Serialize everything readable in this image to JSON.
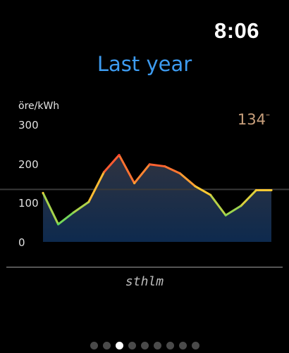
{
  "status": {
    "time": "8:06"
  },
  "screen": {
    "title": "Last year"
  },
  "current_price": {
    "value": "134",
    "marker": "–"
  },
  "region": {
    "name": "sthlm"
  },
  "pager": {
    "count": 9,
    "active_index": 2
  },
  "colors": {
    "title": "#3d9bf0",
    "current_price": "#c9a07c",
    "area_fill_top": "#2f3340",
    "area_fill_bottom": "#0e2a4e",
    "line_low": "#4cd964",
    "line_mid": "#ffcc33",
    "line_high": "#ff3b30",
    "reference_line": "#3a3a3a"
  },
  "chart_data": {
    "type": "area",
    "ylabel": "öre/kWh",
    "ylim": [
      0,
      300
    ],
    "yticks": [
      "300",
      "200",
      "100",
      "0"
    ],
    "reference_value": 134,
    "x": [
      1,
      2,
      3,
      4,
      5,
      6,
      7,
      8,
      9,
      10,
      11,
      12,
      13,
      14,
      15,
      16
    ],
    "values": [
      125,
      45,
      75,
      102,
      178,
      222,
      150,
      198,
      193,
      175,
      142,
      120,
      68,
      92,
      132,
      132
    ],
    "grid": false,
    "legend": "none"
  }
}
